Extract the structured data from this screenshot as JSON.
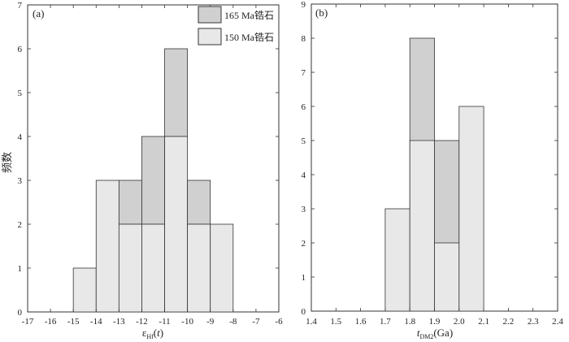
{
  "chart_data": [
    {
      "panel_label": "(a)",
      "type": "bar",
      "stacked": true,
      "x": {
        "ticks": [
          -17,
          -16,
          -15,
          -14,
          -13,
          -12,
          -11,
          -10,
          -9,
          -8,
          -7,
          -6
        ],
        "range": [
          -17,
          -6
        ],
        "label_main": "ε",
        "label_sub": "Hf",
        "label_paren_open": "(",
        "label_var": "t",
        "label_paren_close": ")"
      },
      "y": {
        "ticks": [
          0,
          1,
          2,
          3,
          4,
          5,
          6,
          7
        ],
        "range": [
          0,
          7
        ],
        "label": "频数"
      },
      "bins": [
        {
          "x0": -15,
          "x1": -14,
          "v150": 1,
          "v165": 0
        },
        {
          "x0": -14,
          "x1": -13,
          "v150": 3,
          "v165": 0
        },
        {
          "x0": -13,
          "x1": -12,
          "v150": 2,
          "v165": 1
        },
        {
          "x0": -12,
          "x1": -11,
          "v150": 2,
          "v165": 2
        },
        {
          "x0": -11,
          "x1": -10,
          "v150": 4,
          "v165": 2
        },
        {
          "x0": -10,
          "x1": -9,
          "v150": 2,
          "v165": 1
        },
        {
          "x0": -9,
          "x1": -8,
          "v150": 2,
          "v165": 0
        }
      ],
      "legend": [
        {
          "label": "165 Ma锆石",
          "color": "#d0d0d0"
        },
        {
          "label": "150 Ma锆石",
          "color": "#e8e8e8"
        }
      ]
    },
    {
      "panel_label": "(b)",
      "type": "bar",
      "stacked": false,
      "x": {
        "ticks": [
          "1.4",
          "1.5",
          "1.6",
          "1.7",
          "1.8",
          "1.9",
          "2.0",
          "2.1",
          "2.2",
          "2.3",
          "2.4"
        ],
        "range": [
          1.4,
          2.4
        ],
        "label_var": "t",
        "label_sub": "DM2",
        "label_rest": "(Ga)"
      },
      "y": {
        "ticks": [
          0,
          1,
          2,
          3,
          4,
          5,
          6,
          7,
          8,
          9
        ],
        "range": [
          0,
          9
        ]
      },
      "bars": [
        {
          "x0": 1.8,
          "x1": 1.9,
          "value": 8,
          "color": "#d0d0d0"
        },
        {
          "x0": 1.9,
          "x1": 2.0,
          "value": 5,
          "color": "#d0d0d0"
        },
        {
          "x0": 1.7,
          "x1": 1.8,
          "value": 3,
          "color": "#e8e8e8"
        },
        {
          "x0": 1.8,
          "x1": 1.9,
          "value": 5,
          "color": "#e8e8e8"
        },
        {
          "x0": 1.9,
          "x1": 2.0,
          "value": 2,
          "color": "#e8e8e8"
        },
        {
          "x0": 2.0,
          "x1": 2.1,
          "value": 6,
          "color": "#e8e8e8"
        }
      ]
    }
  ],
  "colors": {
    "bar_165": "#d0d0d0",
    "bar_150": "#e8e8e8",
    "stroke": "#333333"
  }
}
